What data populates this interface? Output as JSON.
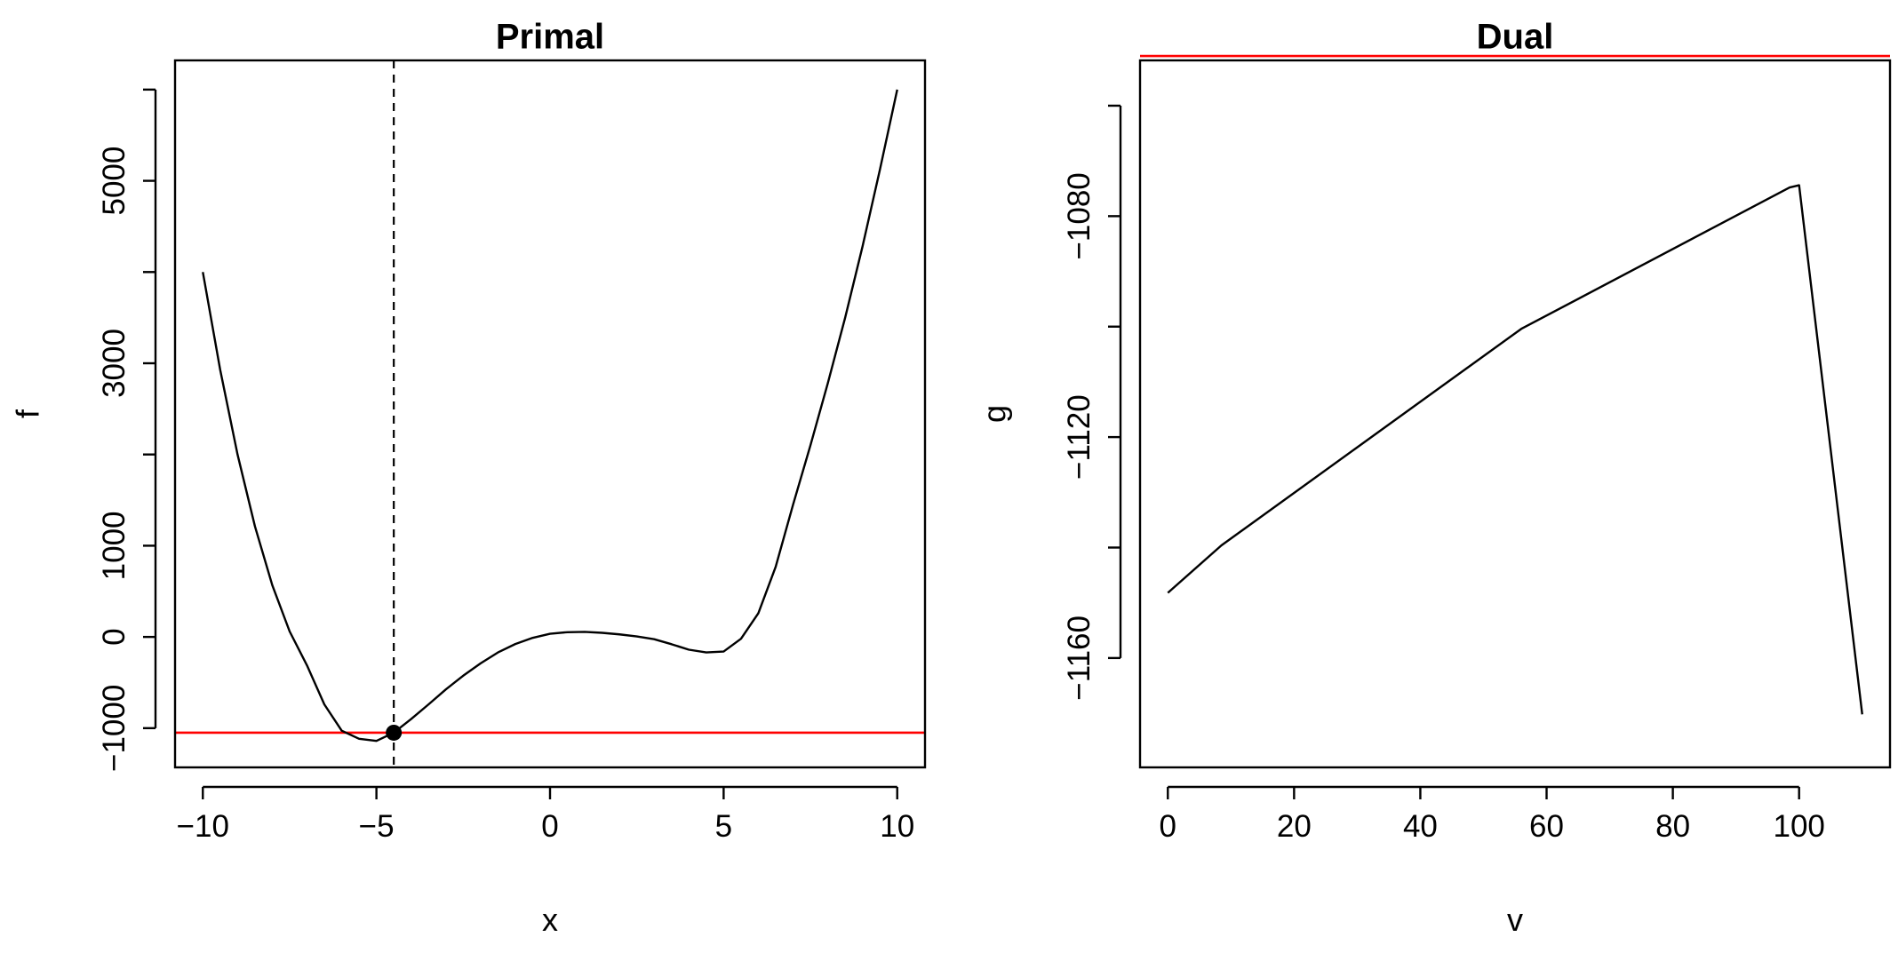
{
  "chart_data": [
    {
      "type": "line",
      "title": "Primal",
      "xlabel": "x",
      "ylabel": "f",
      "xlim": [
        -10.8,
        10.8
      ],
      "ylim": [
        -1430,
        6320
      ],
      "xticks": [
        -10,
        -5,
        0,
        5,
        10
      ],
      "xtick_labels": [
        "−10",
        "−5",
        "0",
        "5",
        "10"
      ],
      "yticks": [
        -1000,
        0,
        1000,
        2000,
        3000,
        4000,
        5000,
        6000
      ],
      "ytick_labels": [
        "−1000",
        "0",
        "1000",
        "",
        "3000",
        "",
        "5000",
        ""
      ],
      "series": [
        {
          "x": [
            -10,
            -9.5,
            -9,
            -8.5,
            -8,
            -7.5,
            -7,
            -6.5,
            -6,
            -5.5,
            -5,
            -4.5,
            -4,
            -3.5,
            -3,
            -2.5,
            -2,
            -1.5,
            -1,
            -0.5,
            0,
            0.5,
            1,
            1.5,
            2,
            2.5,
            3,
            3.5,
            4,
            4.5,
            5,
            5.5,
            6,
            6.5,
            7,
            7.5,
            8,
            8.5,
            9,
            9.5,
            10
          ],
          "y": [
            4000,
            2928,
            2000,
            1214,
            568,
            61,
            -312,
            -740,
            -1028,
            -1117,
            -1140,
            -1050,
            -900,
            -740,
            -575,
            -425,
            -290,
            -170,
            -78,
            -10,
            35,
            52,
            55,
            45,
            28,
            5,
            -25,
            -80,
            -140,
            -170,
            -160,
            -20,
            260,
            770,
            1450,
            2100,
            2780,
            3500,
            4280,
            5120,
            6000
          ],
          "color": "#000000"
        }
      ],
      "reference_lines": [
        {
          "orientation": "horizontal",
          "value": -1050,
          "color": "#ff0000",
          "style": "solid"
        },
        {
          "orientation": "vertical",
          "value": -4.5,
          "color": "#000000",
          "style": "dashed"
        }
      ],
      "points": [
        {
          "x": -4.5,
          "y": -1050,
          "color": "#000000"
        }
      ]
    },
    {
      "type": "line",
      "title": "Dual",
      "xlabel": "v",
      "ylabel": "g",
      "xlim": [
        -4.4,
        114.4
      ],
      "ylim": [
        -1179.8,
        -1051.8
      ],
      "xticks": [
        0,
        20,
        40,
        60,
        80,
        100
      ],
      "xtick_labels": [
        "0",
        "20",
        "40",
        "60",
        "80",
        "100"
      ],
      "yticks": [
        -1160,
        -1140,
        -1120,
        -1100,
        -1080,
        -1060
      ],
      "ytick_labels": [
        "−1160",
        "",
        "−1120",
        "",
        "−1080",
        ""
      ],
      "series": [
        {
          "x": [
            0,
            8.5,
            56,
            98.5,
            100,
            110
          ],
          "y": [
            -1148.2,
            -1139.6,
            -1100.4,
            -1074.8,
            -1074.4,
            -1170.2
          ],
          "color": "#000000"
        }
      ],
      "reference_lines": [
        {
          "orientation": "horizontal",
          "value": -1051,
          "color": "#ff0000",
          "style": "solid"
        }
      ]
    }
  ]
}
